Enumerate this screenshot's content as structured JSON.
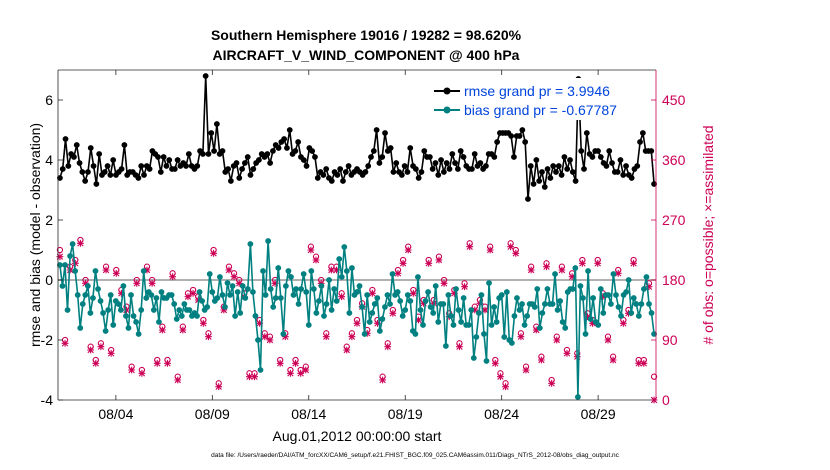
{
  "chart_data": {
    "type": "line",
    "title": "Southern Hemisphere 19016 / 19282 = 98.620%",
    "subtitle": "AIRCRAFT_V_WIND_COMPONENT @ 400 hPa",
    "xlabel": "Aug.01,2012 00:00:00 start",
    "ylabel": "rmse and bias (model - observation)",
    "y2label": "# of obs: o=possible; ×=assimilated",
    "xlim": [
      1,
      32
    ],
    "ylim": [
      -4,
      7
    ],
    "y2lim": [
      0,
      495
    ],
    "x_ticks": [
      4,
      9,
      14,
      19,
      24,
      29
    ],
    "x_tick_labels": [
      "08/04",
      "08/09",
      "08/14",
      "08/19",
      "08/24",
      "08/29"
    ],
    "y_ticks": [
      -4,
      -2,
      0,
      2,
      4,
      6
    ],
    "y2_ticks": [
      0,
      90,
      180,
      270,
      360,
      450
    ],
    "legend_position": "top-right",
    "colors": {
      "rmse": "#000000",
      "bias": "#008080",
      "counts": "#cc0055",
      "zero_line": "#b0b0b0"
    },
    "series": [
      {
        "name": "rmse grand pr = 3.9946",
        "role": "rmse",
        "values": [
          3.4,
          3.7,
          4.7,
          3.8,
          4.2,
          4.1,
          4.5,
          3.9,
          3.6,
          3.3,
          3.6,
          4.4,
          3.8,
          3.2,
          4.2,
          3.5,
          3.6,
          3.8,
          3.5,
          4.0,
          3.5,
          3.6,
          3.7,
          4.5,
          3.5,
          3.6,
          3.6,
          3.5,
          3.4,
          3.8,
          3.5,
          3.8,
          3.7,
          4.3,
          4.2,
          4.1,
          3.6,
          4.1,
          3.8,
          4.0,
          3.7,
          3.7,
          4.0,
          3.8,
          3.9,
          3.8,
          4.2,
          3.8,
          3.7,
          3.8,
          4.3,
          4.2,
          6.8,
          4.2,
          4.9,
          4.3,
          5.2,
          4.2,
          4.3,
          3.6,
          3.7,
          3.3,
          3.8,
          3.9,
          3.4,
          3.7,
          3.9,
          4.1,
          3.5,
          3.7,
          3.9,
          4.0,
          4.2,
          4.1,
          4.2,
          3.9,
          4.3,
          4.5,
          4.4,
          4.6,
          4.7,
          4.4,
          5.0,
          4.2,
          4.3,
          4.6,
          4.1,
          4.0,
          3.8,
          4.4,
          4.3,
          4.1,
          3.4,
          3.6,
          3.5,
          3.7,
          3.4,
          3.3,
          3.6,
          3.5,
          3.7,
          3.3,
          3.6,
          3.8,
          3.5,
          3.6,
          3.7,
          3.6,
          3.5,
          3.6,
          3.8,
          4.1,
          4.3,
          5.0,
          3.9,
          4.1,
          4.9,
          4.3,
          4.4,
          3.6,
          3.9,
          3.6,
          3.5,
          3.8,
          3.6,
          4.4,
          3.8,
          3.7,
          3.4,
          3.6,
          4.3,
          4.1,
          4.1,
          3.7,
          3.9,
          3.5,
          4.0,
          3.6,
          3.9,
          3.7,
          4.2,
          3.9,
          3.7,
          4.3,
          4.1,
          3.8,
          3.7,
          3.7,
          4.2,
          3.8,
          3.9,
          3.7,
          3.8,
          4.2,
          4.2,
          4.1,
          4.6,
          4.9,
          4.9,
          4.9,
          4.9,
          4.8,
          4.1,
          4.8,
          4.8,
          5.0,
          4.6,
          2.7,
          3.8,
          3.2,
          4.0,
          3.3,
          3.6,
          3.1,
          3.7,
          3.4,
          3.8,
          3.6,
          3.8,
          3.5,
          4.1,
          3.7,
          4.0,
          3.6,
          3.3,
          6.7,
          4.3,
          3.7,
          4.9,
          4.2,
          4.1,
          4.3,
          4.3,
          4.1,
          3.9,
          3.8,
          4.3,
          3.9,
          3.6,
          3.6,
          4.0,
          3.5,
          3.8,
          3.5,
          3.4,
          3.7,
          3.8,
          4.6,
          4.9,
          4.3,
          4.3,
          4.3,
          3.2
        ]
      },
      {
        "name": "bias grand pr = -0.67787",
        "role": "bias",
        "values": [
          0.5,
          -0.2,
          0.5,
          -1.0,
          0.8,
          1.2,
          0.3,
          -0.5,
          -1.6,
          -0.8,
          -0.5,
          -0.2,
          -1.1,
          -0.6,
          0.3,
          -0.3,
          -0.7,
          -1.1,
          -1.7,
          -1.0,
          -0.5,
          -1.5,
          -0.7,
          -0.8,
          -1.0,
          -0.2,
          -1.2,
          -1.6,
          -0.5,
          -1.2,
          -1.4,
          -1.8,
          -1.0,
          0.3,
          -0.6,
          -0.4,
          -0.5,
          -1.0,
          -0.6,
          -1.4,
          -0.4,
          -0.6,
          -0.6,
          -0.5,
          -0.5,
          -0.8,
          -1.3,
          -1.0,
          -1.2,
          -0.8,
          -1.0,
          -1.0,
          -1.2,
          -1.1,
          -1.2,
          -0.4,
          -0.7,
          -1.0,
          -0.9,
          0.2,
          -0.4,
          -0.7,
          -0.6,
          0.1,
          -0.5,
          -0.9,
          -0.1,
          -0.5,
          -0.2,
          -1.2,
          -0.4,
          -1.1,
          -0.2,
          -0.6,
          -0.3,
          1.2,
          -0.4,
          -1.2,
          -2.0,
          -3.0,
          0.3,
          -0.5,
          1.3,
          -0.3,
          -0.9,
          -0.6,
          0.4,
          -0.6,
          -1.8,
          -0.2,
          0.3,
          0.1,
          -0.5,
          -0.3,
          -0.8,
          -0.3,
          0.2,
          -0.4,
          -1.5,
          0.3,
          -0.3,
          -1.1,
          -0.7,
          -0.2,
          -1.2,
          -0.8,
          0.0,
          -1.0,
          -0.3,
          -0.7,
          0.7,
          0.1,
          1.1,
          0.3,
          -1.1,
          0.4,
          -0.5,
          -0.4,
          -0.2,
          -0.9,
          -1.8,
          -0.5,
          -1.4,
          -1.1,
          -0.8,
          -0.6,
          -1.7,
          -1.3,
          -0.9,
          -0.5,
          -0.8,
          0.2,
          -0.5,
          -0.4,
          -0.7,
          -1.2,
          -1.0,
          -0.5,
          -0.7,
          -1.7,
          -1.8,
          0.1,
          -1.0,
          -1.5,
          -0.7,
          -0.4,
          -0.9,
          -1.1,
          -0.2,
          -1.4,
          -0.8,
          -0.8,
          -2.2,
          -0.5,
          -1.2,
          -1.5,
          -0.3,
          -1.0,
          -1.4,
          -0.6,
          -1.5,
          -1.5,
          -1.0,
          -2.6,
          -1.9,
          -1.1,
          -0.5,
          -1.8,
          -2.7,
          -0.1,
          -1.5,
          -0.9,
          -1.4,
          -0.6,
          -0.5,
          -1.9,
          -0.4,
          -2.0,
          -2.1,
          -1.2,
          -0.6,
          -1.0,
          -0.8,
          -1.5,
          -1.2,
          -0.8,
          -0.8,
          -0.9,
          -0.3,
          -1.6,
          -1.1,
          -0.8,
          -0.3,
          -0.8,
          -0.8,
          0.2,
          -1.0,
          -0.7,
          -1.4,
          -1.6,
          -0.4,
          -0.3,
          -0.3,
          0.4,
          -3.9,
          -0.2,
          -0.6,
          -1.8,
          0.3,
          -1.3,
          -0.6,
          -1.4,
          -1.5,
          -0.3,
          -1.1,
          -0.5,
          -0.5,
          -0.8,
          0.2,
          -0.5,
          -0.9,
          -1.2,
          -0.5,
          -0.4,
          0.0,
          -1.1,
          -0.6,
          -0.8,
          -1.2,
          -0.8,
          -0.3,
          0.1,
          -0.8,
          -1.1,
          -1.8
        ]
      },
      {
        "name": "possible",
        "role": "count_possible",
        "marker": "circle",
        "values": [
          225,
          90,
          200,
          210,
          240,
          180,
          80,
          60,
          85,
          200,
          75,
          195,
          165,
          140,
          50,
          180,
          45,
          200,
          180,
          60,
          110,
          60,
          190,
          35,
          110,
          160,
          165,
          155,
          120,
          100,
          225,
          25,
          140,
          200,
          190,
          180,
          160,
          40,
          40,
          120,
          100,
          95,
          180,
          60,
          100,
          45,
          60,
          45,
          50,
          230,
          215,
          180,
          100,
          200,
          200,
          160,
          80,
          100,
          120,
          145,
          105,
          165,
          120,
          35,
          85,
          135,
          195,
          210,
          230,
          165,
          125,
          150,
          210,
          150,
          215,
          180,
          130,
          165,
          85,
          175,
          235,
          140,
          150,
          140,
          230,
          60,
          40,
          25,
          235,
          225,
          100,
          50,
          200,
          110,
          65,
          205,
          30,
          95,
          200,
          75,
          190,
          70,
          210,
          130,
          120,
          210,
          160,
          95,
          65,
          195,
          120,
          135,
          210,
          60,
          60,
          175,
          35
        ]
      },
      {
        "name": "assimilated",
        "role": "count_assimilated",
        "marker": "cross",
        "values": [
          215,
          85,
          195,
          205,
          235,
          175,
          75,
          55,
          80,
          195,
          70,
          190,
          160,
          135,
          45,
          175,
          40,
          195,
          175,
          55,
          105,
          55,
          185,
          30,
          105,
          155,
          160,
          150,
          115,
          95,
          220,
          20,
          135,
          195,
          185,
          175,
          155,
          35,
          35,
          115,
          95,
          90,
          175,
          55,
          95,
          40,
          55,
          40,
          45,
          225,
          210,
          175,
          95,
          195,
          195,
          155,
          75,
          95,
          115,
          140,
          100,
          160,
          115,
          30,
          80,
          130,
          190,
          205,
          225,
          160,
          120,
          145,
          205,
          145,
          210,
          175,
          125,
          160,
          80,
          170,
          230,
          135,
          145,
          135,
          225,
          55,
          35,
          20,
          230,
          220,
          95,
          45,
          195,
          105,
          60,
          200,
          25,
          90,
          195,
          70,
          185,
          65,
          205,
          125,
          115,
          205,
          155,
          90,
          60,
          190,
          115,
          130,
          205,
          55,
          55,
          170,
          0
        ]
      }
    ]
  },
  "footer": "data file: /Users/raeder/DAI/ATM_forcXX/CAM6_setup/f.e21.FHIST_BGC.f09_025.CAM6assim.011/Diags_NTrS_2012-08/obs_diag_output.nc"
}
